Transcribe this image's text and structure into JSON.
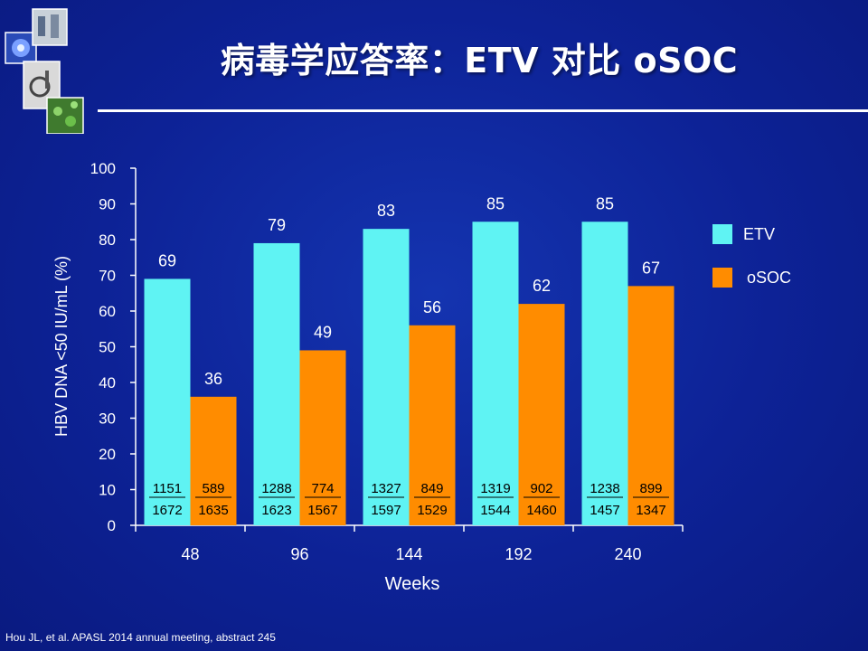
{
  "slide": {
    "title": "病毒学应答率：ETV 对比 oSOC",
    "footer": "Hou JL, et al. APASL 2014 annual meeting, abstract 245"
  },
  "colors": {
    "background": "#0d2296",
    "etv": "#5ff3f3",
    "osoc": "#ff8c00",
    "axis": "#ffffff"
  },
  "decoration": {
    "icons": [
      "flower-microscopy-icon",
      "lab-people-photo-icon",
      "lab-equipment-icon",
      "cell-culture-icon"
    ]
  },
  "chart_data": {
    "type": "bar",
    "title": "",
    "xlabel": "Weeks",
    "ylabel": "HBV DNA  <50 IU/mL (%)",
    "ylim": [
      0,
      100
    ],
    "yticks": [
      0,
      10,
      20,
      30,
      40,
      50,
      60,
      70,
      80,
      90,
      100
    ],
    "grid": false,
    "legend_position": "right",
    "categories": [
      "48",
      "96",
      "144",
      "192",
      "240"
    ],
    "series": [
      {
        "name": "ETV",
        "values": [
          69,
          79,
          83,
          85,
          85
        ],
        "numerators": [
          "1151",
          "1288",
          "1327",
          "1319",
          "1238"
        ],
        "denominators": [
          "1672",
          "1623",
          "1597",
          "1544",
          "1457"
        ]
      },
      {
        "name": "oSOC",
        "values": [
          36,
          49,
          56,
          62,
          67
        ],
        "numerators": [
          "589",
          "774",
          "849",
          "902",
          "899"
        ],
        "denominators": [
          "1635",
          "1567",
          "1529",
          "1460",
          "1347"
        ]
      }
    ]
  }
}
